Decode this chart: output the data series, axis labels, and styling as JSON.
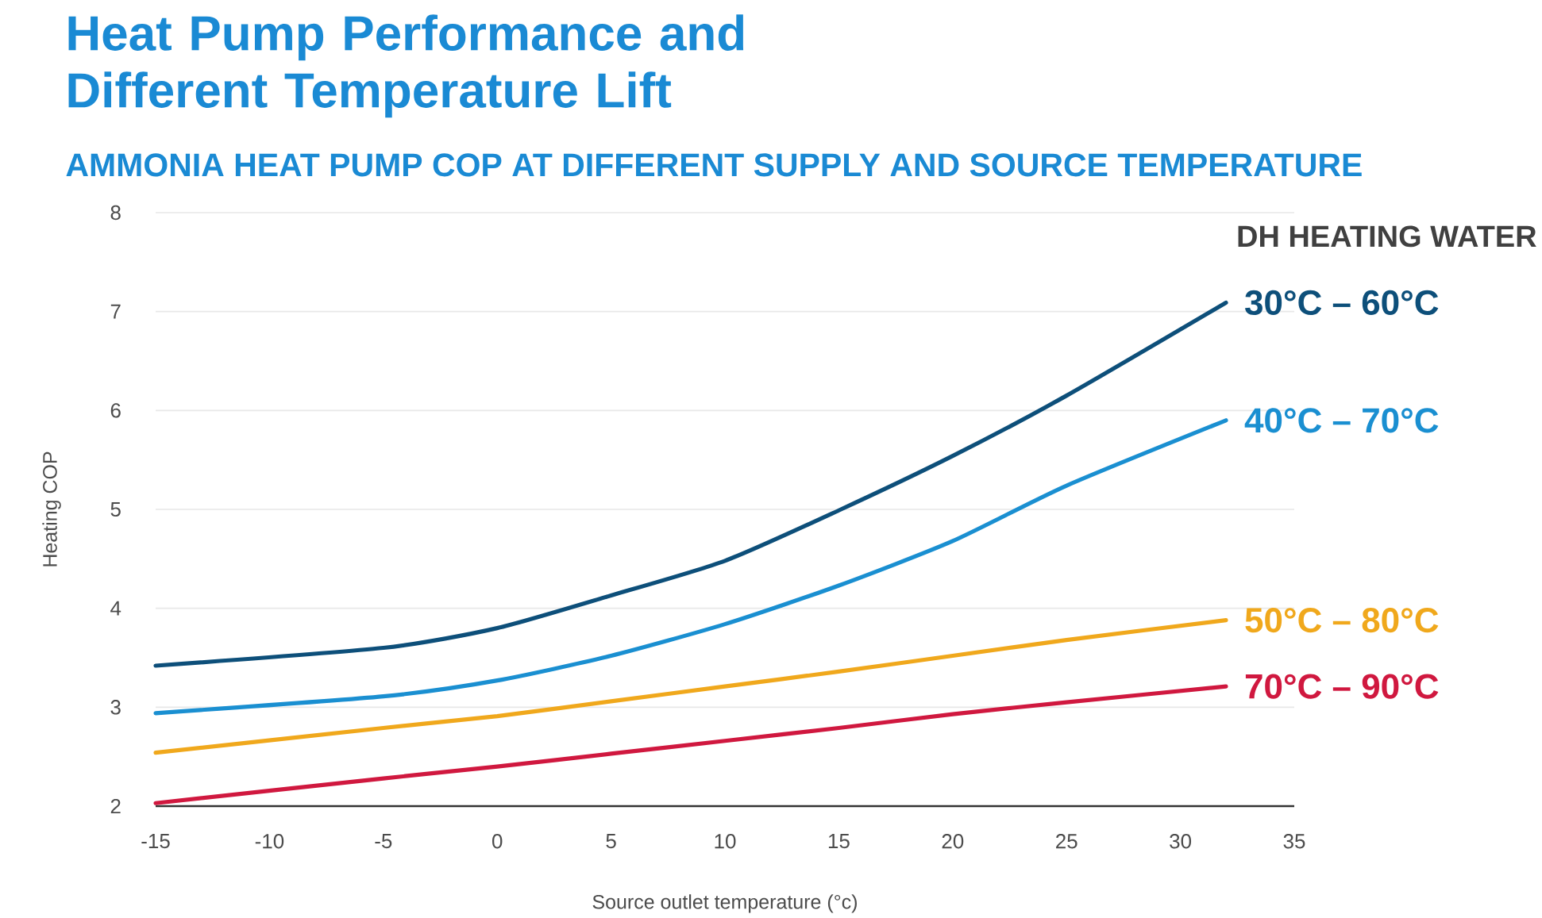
{
  "chart_data": {
    "type": "line",
    "title": "Heat Pump Performance and\nDifferent Temperature Lift",
    "subtitle": "AMMONIA HEAT PUMP COP AT DIFFERENT SUPPLY AND SOURCE TEMPERATURE",
    "xlabel": "Source outlet temperature (°c)",
    "ylabel": "Heating COP",
    "legend_title": "DH HEATING WATER",
    "x": [
      -15,
      -5,
      0,
      5,
      10,
      15,
      20,
      25,
      32
    ],
    "series": [
      {
        "name": "30°C – 60°C",
        "color": "#0d4f7a",
        "values": [
          3.42,
          3.6,
          3.8,
          4.13,
          4.48,
          4.99,
          5.54,
          6.15,
          7.09
        ]
      },
      {
        "name": "40°C – 70°C",
        "color": "#1a8fd1",
        "values": [
          2.94,
          3.11,
          3.27,
          3.52,
          3.84,
          4.23,
          4.68,
          5.24,
          5.9
        ]
      },
      {
        "name": "50°C – 80°C",
        "color": "#f0a81c",
        "values": [
          2.54,
          2.79,
          2.91,
          3.06,
          3.21,
          3.36,
          3.52,
          3.68,
          3.88
        ]
      },
      {
        "name": "70°C – 90°C",
        "color": "#d0183f",
        "values": [
          2.03,
          2.28,
          2.4,
          2.53,
          2.66,
          2.79,
          2.93,
          3.05,
          3.21
        ]
      }
    ],
    "xlim": [
      -15,
      35
    ],
    "xticks": [
      -15,
      -10,
      -5,
      0,
      5,
      10,
      15,
      20,
      25,
      30,
      35
    ],
    "ylim": [
      2,
      8
    ],
    "yticks": [
      2,
      3,
      4,
      5,
      6,
      7,
      8
    ],
    "grid": "y",
    "legend": "right",
    "marker": "none",
    "line_style": "solid"
  }
}
